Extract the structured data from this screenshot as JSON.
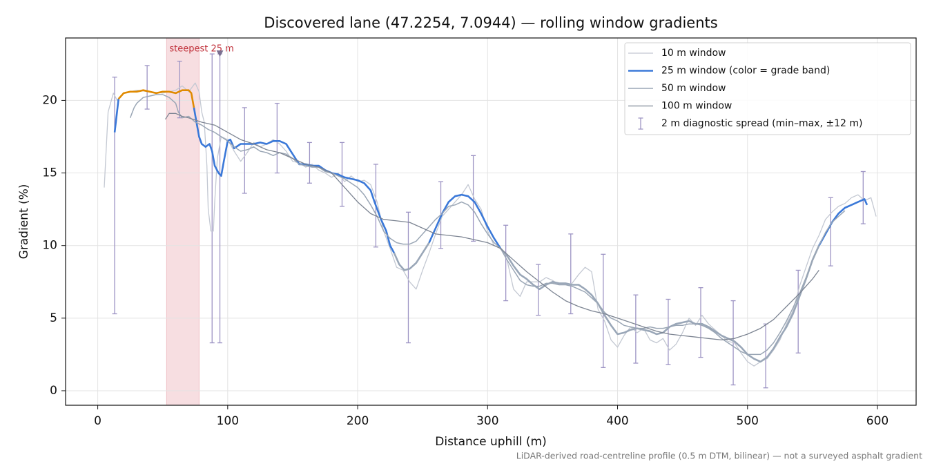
{
  "chart_data": {
    "type": "line",
    "title": "Discovered lane (47.2254, 7.0944) — rolling window gradients",
    "x_label": "Distance uphill (m)",
    "y_label": "Gradient (%)",
    "footnote": "LiDAR-derived road-centreline profile (0.5 m DTM, bilinear) — not a surveyed asphalt gradient",
    "xlim": [
      -24.75,
      629.75
    ],
    "ylim": [
      -1.0,
      24.3
    ],
    "xticks": [
      0,
      100,
      200,
      300,
      400,
      500,
      600
    ],
    "yticks": [
      0,
      5,
      10,
      15,
      20
    ],
    "grid": true,
    "legend": "upper right",
    "series": [
      {
        "name": "10 m window",
        "color": "#c3c8d2",
        "linewidth": 1.3,
        "x": [
          5,
          8,
          12,
          15,
          20,
          30,
          40,
          50,
          60,
          65,
          70,
          75,
          78,
          80,
          82,
          84,
          85,
          87,
          89,
          90,
          92,
          95,
          100,
          105,
          110,
          115,
          120,
          125,
          130,
          135,
          140,
          145,
          150,
          155,
          160,
          165,
          170,
          175,
          180,
          185,
          190,
          195,
          200,
          205,
          210,
          215,
          220,
          225,
          230,
          235,
          240,
          245,
          250,
          255,
          260,
          265,
          270,
          275,
          280,
          285,
          290,
          295,
          300,
          305,
          310,
          315,
          320,
          325,
          330,
          335,
          340,
          345,
          350,
          355,
          360,
          365,
          370,
          375,
          380,
          385,
          390,
          395,
          400,
          405,
          410,
          415,
          420,
          425,
          430,
          435,
          440,
          445,
          450,
          455,
          460,
          465,
          470,
          475,
          480,
          485,
          490,
          495,
          500,
          505,
          510,
          515,
          520,
          525,
          530,
          535,
          540,
          545,
          550,
          555,
          560,
          565,
          570,
          575,
          580,
          585,
          590,
          595,
          599
        ],
        "values": [
          14.0,
          19.2,
          20.5,
          20.0,
          20.5,
          20.7,
          20.6,
          20.5,
          20.7,
          21.0,
          20.6,
          21.2,
          20.6,
          19.2,
          18.5,
          15.5,
          12.5,
          11.0,
          11.0,
          13.0,
          16.0,
          17.5,
          17.3,
          16.5,
          15.8,
          16.4,
          17.1,
          16.8,
          17.0,
          17.3,
          17.0,
          16.5,
          15.8,
          15.7,
          15.4,
          15.6,
          15.2,
          15.0,
          14.7,
          15.0,
          14.4,
          14.8,
          14.4,
          14.5,
          14.2,
          13.0,
          11.0,
          9.8,
          8.5,
          8.3,
          7.5,
          7.0,
          8.3,
          9.5,
          10.8,
          12.0,
          12.5,
          13.0,
          13.5,
          14.2,
          13.2,
          12.5,
          11.0,
          10.0,
          9.8,
          9.0,
          7.0,
          6.5,
          7.5,
          7.5,
          7.5,
          7.8,
          7.6,
          7.3,
          7.3,
          7.4,
          8.0,
          8.5,
          8.2,
          5.6,
          4.8,
          3.5,
          3.0,
          3.8,
          4.4,
          4.0,
          4.3,
          3.5,
          3.3,
          3.6,
          2.8,
          3.2,
          4.0,
          5.0,
          4.5,
          5.2,
          4.6,
          4.2,
          3.8,
          3.4,
          3.3,
          2.6,
          2.0,
          1.7,
          2.0,
          2.2,
          2.8,
          3.5,
          4.6,
          5.5,
          7.2,
          8.5,
          9.8,
          10.7,
          11.8,
          12.3,
          12.7,
          12.9,
          13.3,
          13.5,
          13.1,
          13.3,
          12.0
        ]
      },
      {
        "name": "25 m window (color = grade band)",
        "color": "#3a78d8",
        "linewidth": 2.6,
        "band_edges": [
          10,
          20
        ],
        "band_colors": [
          "#9aa7b8",
          "#3a78d8",
          "#e08a00"
        ],
        "x": [
          13,
          16,
          20,
          25,
          30,
          35,
          40,
          45,
          50,
          55,
          60,
          65,
          70,
          72,
          74,
          76,
          78,
          80,
          83,
          86,
          88,
          90,
          93,
          95,
          97,
          100,
          102,
          105,
          110,
          115,
          120,
          125,
          130,
          135,
          140,
          145,
          150,
          155,
          160,
          165,
          170,
          175,
          180,
          185,
          190,
          195,
          200,
          205,
          210,
          213,
          218,
          222,
          225,
          228,
          232,
          236,
          240,
          245,
          250,
          255,
          260,
          265,
          270,
          275,
          280,
          285,
          290,
          295,
          300,
          305,
          310,
          315,
          320,
          325,
          330,
          335,
          340,
          345,
          350,
          355,
          360,
          365,
          370,
          375,
          380,
          385,
          390,
          395,
          400,
          405,
          410,
          415,
          420,
          425,
          430,
          435,
          440,
          445,
          450,
          455,
          460,
          465,
          470,
          475,
          480,
          485,
          490,
          495,
          500,
          505,
          510,
          515,
          520,
          525,
          530,
          535,
          540,
          545,
          550,
          555,
          560,
          565,
          570,
          575,
          580,
          585,
          590,
          592
        ],
        "values": [
          17.8,
          20.1,
          20.5,
          20.6,
          20.6,
          20.7,
          20.6,
          20.5,
          20.6,
          20.6,
          20.5,
          20.7,
          20.7,
          20.5,
          19.5,
          18.5,
          17.5,
          17.0,
          16.8,
          17.0,
          16.5,
          15.5,
          15.0,
          14.8,
          15.8,
          17.2,
          17.3,
          16.7,
          17.0,
          17.0,
          17.0,
          17.1,
          17.0,
          17.2,
          17.2,
          17.0,
          16.3,
          15.6,
          15.6,
          15.5,
          15.5,
          15.2,
          15.0,
          14.9,
          14.7,
          14.6,
          14.5,
          14.3,
          13.8,
          13.0,
          11.8,
          11.0,
          10.0,
          9.5,
          8.7,
          8.3,
          8.4,
          8.8,
          9.5,
          10.2,
          11.2,
          12.2,
          13.0,
          13.4,
          13.5,
          13.4,
          13.0,
          12.2,
          11.3,
          10.5,
          9.8,
          9.3,
          8.6,
          8.0,
          7.7,
          7.3,
          7.0,
          7.3,
          7.5,
          7.4,
          7.4,
          7.3,
          7.3,
          7.0,
          6.6,
          6.0,
          5.2,
          4.5,
          3.9,
          4.0,
          4.2,
          4.3,
          4.2,
          4.1,
          3.9,
          4.0,
          4.4,
          4.6,
          4.7,
          4.8,
          4.6,
          4.6,
          4.4,
          4.1,
          3.8,
          3.6,
          3.4,
          3.0,
          2.5,
          2.2,
          2.0,
          2.3,
          2.9,
          3.7,
          4.4,
          5.3,
          6.5,
          7.7,
          9.0,
          10.0,
          10.8,
          11.6,
          12.2,
          12.6,
          12.8,
          13.0,
          13.2,
          12.8
        ]
      },
      {
        "name": "50 m window",
        "color": "#9aa6b5",
        "linewidth": 1.5,
        "x": [
          25,
          28,
          30,
          35,
          40,
          45,
          50,
          55,
          60,
          62,
          65,
          70,
          75,
          80,
          85,
          90,
          95,
          100,
          105,
          110,
          115,
          120,
          125,
          130,
          135,
          140,
          145,
          150,
          155,
          160,
          165,
          170,
          175,
          180,
          185,
          190,
          195,
          200,
          205,
          210,
          215,
          220,
          225,
          230,
          235,
          240,
          245,
          250,
          255,
          260,
          265,
          270,
          275,
          280,
          285,
          290,
          295,
          300,
          305,
          310,
          315,
          320,
          325,
          330,
          335,
          340,
          345,
          350,
          355,
          360,
          365,
          370,
          375,
          380,
          385,
          390,
          395,
          400,
          405,
          410,
          415,
          420,
          425,
          430,
          435,
          440,
          445,
          450,
          455,
          460,
          465,
          470,
          475,
          480,
          485,
          490,
          495,
          500,
          505,
          510,
          515,
          520,
          525,
          530,
          535,
          540,
          545,
          550,
          555,
          560,
          565,
          570,
          575
        ],
        "values": [
          18.8,
          19.5,
          19.8,
          20.2,
          20.3,
          20.4,
          20.4,
          20.2,
          19.8,
          19.2,
          18.8,
          18.9,
          18.5,
          18.3,
          18.0,
          17.8,
          17.5,
          17.2,
          16.8,
          16.5,
          16.6,
          16.8,
          16.5,
          16.4,
          16.2,
          16.4,
          16.3,
          16.0,
          15.6,
          15.5,
          15.4,
          15.4,
          15.1,
          15.0,
          14.8,
          14.6,
          14.3,
          14.0,
          13.5,
          12.8,
          12.0,
          11.0,
          10.5,
          10.2,
          10.1,
          10.1,
          10.3,
          10.8,
          11.3,
          11.8,
          12.2,
          12.7,
          12.8,
          13.0,
          12.8,
          12.3,
          11.5,
          10.8,
          10.2,
          9.8,
          9.0,
          8.3,
          7.6,
          7.3,
          7.2,
          7.2,
          7.4,
          7.4,
          7.3,
          7.3,
          7.2,
          7.0,
          6.8,
          6.4,
          6.0,
          5.4,
          5.0,
          4.8,
          4.5,
          4.4,
          4.3,
          4.3,
          4.4,
          4.3,
          4.3,
          4.4,
          4.5,
          4.5,
          4.6,
          4.6,
          4.5,
          4.3,
          4.0,
          3.6,
          3.3,
          3.0,
          2.7,
          2.5,
          2.5,
          2.5,
          2.8,
          3.3,
          4.0,
          4.8,
          5.7,
          6.7,
          7.8,
          9.0,
          10.0,
          10.9,
          11.6,
          12.0,
          12.4
        ]
      },
      {
        "name": "100 m window",
        "color": "#7c8492",
        "linewidth": 1.3,
        "x": [
          52,
          55,
          60,
          65,
          70,
          80,
          90,
          100,
          110,
          120,
          130,
          140,
          150,
          160,
          170,
          180,
          190,
          200,
          210,
          220,
          230,
          240,
          250,
          260,
          270,
          280,
          290,
          300,
          310,
          320,
          330,
          340,
          350,
          360,
          370,
          380,
          390,
          400,
          410,
          420,
          430,
          440,
          450,
          460,
          470,
          480,
          490,
          500,
          510,
          520,
          530,
          540,
          550,
          555
        ],
        "values": [
          18.7,
          19.1,
          19.1,
          18.9,
          18.8,
          18.5,
          18.3,
          17.8,
          17.3,
          17.0,
          16.6,
          16.4,
          16.0,
          15.6,
          15.4,
          15.0,
          14.0,
          13.0,
          12.2,
          11.8,
          11.7,
          11.6,
          11.2,
          10.8,
          10.7,
          10.6,
          10.4,
          10.2,
          9.8,
          9.0,
          8.2,
          7.5,
          6.8,
          6.2,
          5.8,
          5.5,
          5.3,
          5.0,
          4.7,
          4.4,
          4.1,
          3.9,
          3.8,
          3.7,
          3.6,
          3.5,
          3.6,
          3.9,
          4.3,
          4.9,
          5.8,
          6.7,
          7.7,
          8.3
        ]
      }
    ],
    "errorbars": {
      "name": "2 m diagnostic spread (min–max, ±12 m)",
      "color": "#9d94c4",
      "x": [
        13,
        38,
        63,
        88,
        94,
        113,
        138,
        163,
        188,
        214,
        239,
        264,
        289,
        314,
        339,
        364,
        389,
        414,
        439,
        464,
        489,
        514,
        539,
        564,
        589
      ],
      "low": [
        5.3,
        19.4,
        18.8,
        3.3,
        3.3,
        13.6,
        15.0,
        14.3,
        12.7,
        9.9,
        3.3,
        9.8,
        10.3,
        6.2,
        5.2,
        5.3,
        1.6,
        1.9,
        1.8,
        2.3,
        0.4,
        0.2,
        2.6,
        8.6,
        11.5
      ],
      "high": [
        21.6,
        22.4,
        22.7,
        23.2,
        23.2,
        19.5,
        19.8,
        17.1,
        17.1,
        15.6,
        12.3,
        14.4,
        16.2,
        11.4,
        8.7,
        10.8,
        9.4,
        6.6,
        6.3,
        7.1,
        6.2,
        4.6,
        8.3,
        13.3,
        15.1
      ]
    },
    "highlight": {
      "label": "steepest 25 m",
      "x": [
        53,
        78
      ],
      "color": "#e8a0a8",
      "text_color": "#c0303a"
    },
    "peak_marker": {
      "x": 94,
      "y": 23.2,
      "color": "#7a7090"
    }
  }
}
